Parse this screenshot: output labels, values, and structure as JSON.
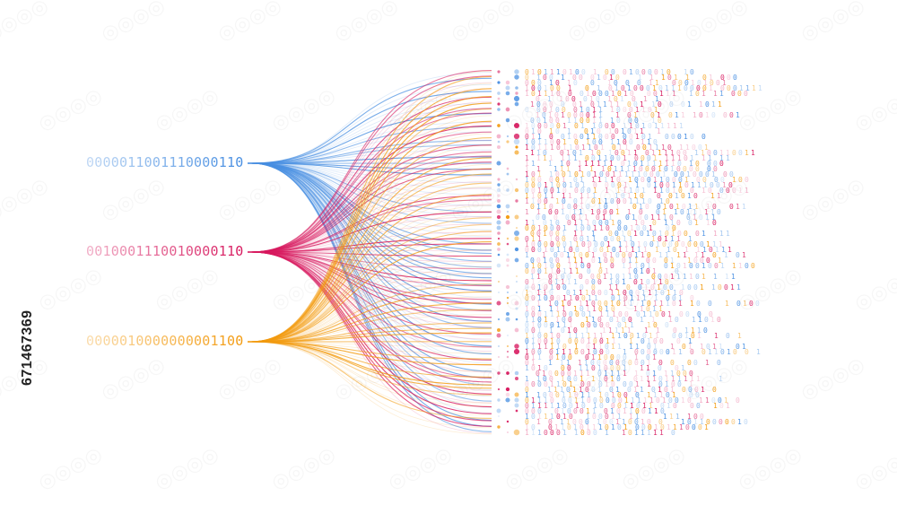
{
  "inputs": [
    {
      "text": "0000011001110000110",
      "color": "#4a90e2"
    },
    {
      "text": "0010001110010000110",
      "color": "#d81b60"
    },
    {
      "text": "0000010000000001100",
      "color": "#f39c12"
    }
  ],
  "stock_id": "671467369",
  "colors": {
    "blue": "#4a90e2",
    "red": "#d81b60",
    "orange": "#f39c12",
    "light_blue": "#9fc5f0",
    "pink": "#f2a9c4"
  }
}
